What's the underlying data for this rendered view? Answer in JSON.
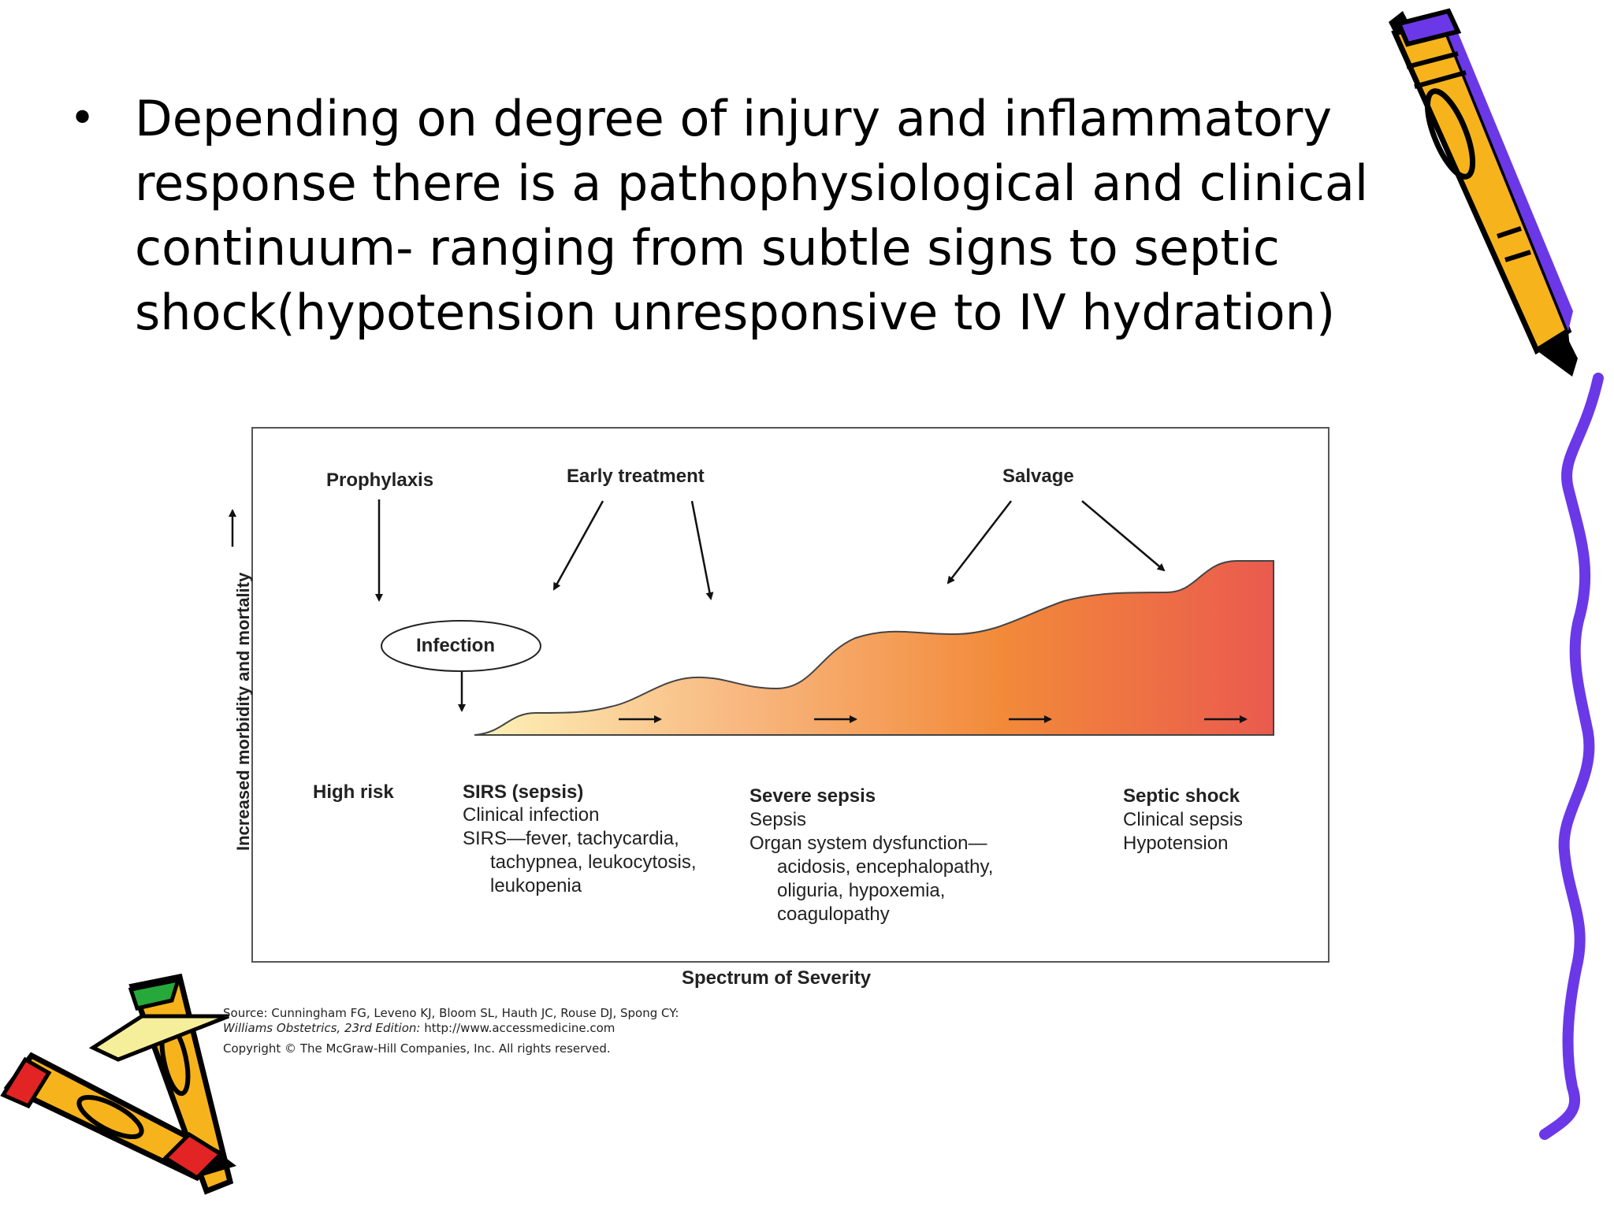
{
  "bullet": {
    "marker": "•",
    "text": "Depending on degree of injury and inflammatory response there is a pathophysiological and clinical continuum- ranging from subtle signs to septic shock(hypotension unresponsive to IV hydration)"
  },
  "figure": {
    "y_axis_label": "Increased morbidity and mortality",
    "x_axis_label": "Spectrum of Severity",
    "top_labels": {
      "prophylaxis": "Prophylaxis",
      "early_treatment": "Early treatment",
      "salvage": "Salvage"
    },
    "infection": "Infection",
    "stages": [
      {
        "title": "High risk",
        "lines": []
      },
      {
        "title": "SIRS (sepsis)",
        "lines": [
          "Clinical infection",
          "SIRS—fever, tachycardia,",
          "tachypnea, leukocytosis,",
          "leukopenia"
        ]
      },
      {
        "title": "Severe sepsis",
        "lines": [
          "Sepsis",
          "Organ system dysfunction—",
          "acidosis, encephalopathy,",
          "oliguria, hypoxemia,",
          "coagulopathy"
        ]
      },
      {
        "title": "Septic shock",
        "lines": [
          "Clinical sepsis",
          "Hypotension"
        ]
      }
    ],
    "gradient_colors": [
      "#fdf2b8",
      "#f8b880",
      "#f28a3a",
      "#ea5a4e"
    ]
  },
  "source": {
    "line1": "Source: Cunningham FG, Leveno KJ, Bloom SL, Hauth JC, Rouse DJ, Spong CY:",
    "line2_italic": "Williams Obstetrics, 23rd Edition:",
    "line2_url": " http://www.accessmedicine.com",
    "line3": "Copyright © The McGraw-Hill Companies, Inc. All rights reserved."
  },
  "decorations": [
    "pencil-icon-top-right",
    "squiggle-line-right",
    "pencils-icon-bottom-left"
  ]
}
